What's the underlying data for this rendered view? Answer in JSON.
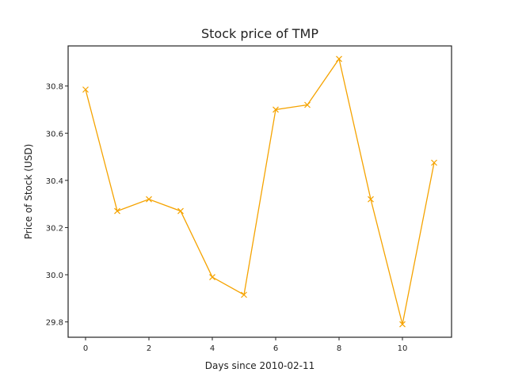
{
  "chart_data": {
    "type": "line",
    "title": "Stock price of TMP",
    "xlabel": "Days since 2010-02-11",
    "ylabel": "Price of Stock (USD)",
    "x": [
      0,
      1,
      2,
      3,
      4,
      5,
      6,
      7,
      8,
      9,
      10,
      11
    ],
    "series": [
      {
        "values": [
          30.785,
          30.27,
          30.32,
          30.27,
          29.99,
          29.915,
          30.7,
          30.72,
          30.915,
          30.32,
          29.79,
          30.475
        ],
        "color": "#f5a300",
        "marker": "x"
      }
    ],
    "xlim": [
      -0.55,
      11.55
    ],
    "ylim": [
      29.735,
      30.97
    ],
    "xticks": [
      0,
      2,
      4,
      6,
      8,
      10
    ],
    "xtick_labels": [
      "0",
      "2",
      "4",
      "6",
      "8",
      "10"
    ],
    "yticks": [
      29.8,
      30.0,
      30.2,
      30.4,
      30.6,
      30.8
    ],
    "ytick_labels": [
      "29.8",
      "30.0",
      "30.2",
      "30.4",
      "30.6",
      "30.8"
    ],
    "grid": false,
    "legend": "none"
  }
}
